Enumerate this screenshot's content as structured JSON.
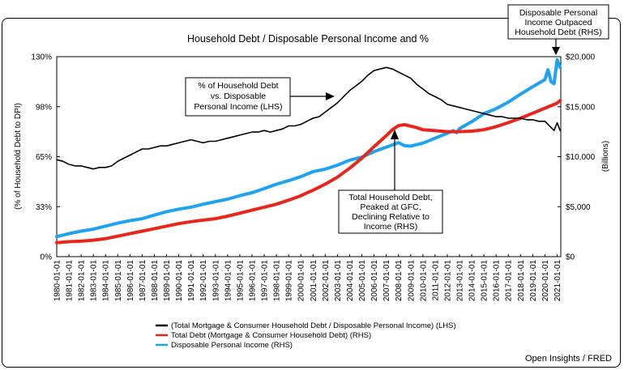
{
  "chart_data": {
    "type": "line",
    "title": "Household Debt / Disposable Personal Income and %",
    "ylabel_left": "(% of Household Debt to DPI)",
    "ylabel_right": "(Billions)",
    "y_left_ticks": [
      "0%",
      "33%",
      "65%",
      "98%",
      "130%"
    ],
    "y_right_ticks": [
      "$0",
      "$5,000",
      "$10,000",
      "$15,000",
      "$20,000"
    ],
    "ylim_left": [
      0,
      130
    ],
    "ylim_right": [
      0,
      20000
    ],
    "x_ticks": [
      "1980-01-01",
      "1981-01-01",
      "1982-01-01",
      "1983-01-01",
      "1984-01-01",
      "1985-01-01",
      "1986-01-01",
      "1987-01-01",
      "1988-01-01",
      "1989-01-01",
      "1990-01-01",
      "1991-01-01",
      "1992-01-01",
      "1993-01-01",
      "1994-01-01",
      "1995-01-01",
      "1996-01-01",
      "1997-01-01",
      "1998-01-01",
      "1999-01-01",
      "2000-01-01",
      "2001-01-01",
      "2002-01-01",
      "2003-01-01",
      "2004-01-01",
      "2005-01-01",
      "2006-01-01",
      "2007-01-01",
      "2008-01-01",
      "2009-01-01",
      "2010-01-01",
      "2011-01-01",
      "2012-01-01",
      "2013-01-01",
      "2014-01-01",
      "2015-01-01",
      "2016-01-01",
      "2017-01-01",
      "2018-01-01",
      "2019-01-01",
      "2020-01-01",
      "2021-01-01"
    ],
    "x_range": [
      1980.0,
      2021.3
    ],
    "legend_position": "bottom",
    "grid": false,
    "series": [
      {
        "name": "(Total Mortgage & Consumer Household Debt / Disposable Personal Income) (LHS)",
        "axis": "left",
        "color": "#000000",
        "x": [
          1980,
          1980.5,
          1981,
          1981.5,
          1982,
          1982.5,
          1983,
          1983.5,
          1984,
          1984.5,
          1985,
          1985.5,
          1986,
          1986.5,
          1987,
          1987.5,
          1988,
          1988.5,
          1989,
          1989.5,
          1990,
          1990.5,
          1991,
          1991.5,
          1992,
          1992.5,
          1993,
          1993.5,
          1994,
          1994.5,
          1995,
          1995.5,
          1996,
          1996.5,
          1997,
          1997.5,
          1998,
          1998.5,
          1999,
          1999.5,
          2000,
          2000.5,
          2001,
          2001.5,
          2002,
          2002.5,
          2003,
          2003.5,
          2004,
          2004.5,
          2005,
          2005.5,
          2006,
          2006.5,
          2007,
          2007.5,
          2008,
          2008.5,
          2009,
          2009.5,
          2010,
          2010.5,
          2011,
          2011.5,
          2012,
          2012.5,
          2013,
          2013.5,
          2014,
          2014.5,
          2015,
          2015.5,
          2016,
          2016.5,
          2017,
          2017.5,
          2018,
          2018.5,
          2019,
          2019.5,
          2020,
          2020.25,
          2020.5,
          2020.75,
          2021,
          2021.25
        ],
        "values": [
          63,
          62,
          60,
          59,
          59,
          58,
          57,
          58,
          58,
          59,
          62,
          64,
          66,
          68,
          70,
          70,
          71,
          72,
          72,
          73,
          74,
          75,
          76,
          75,
          74,
          75,
          75,
          76,
          77,
          78,
          79,
          80,
          81,
          81,
          82,
          81,
          82,
          83,
          85,
          85,
          86,
          88,
          90,
          91,
          94,
          97,
          100,
          104,
          108,
          111,
          114,
          118,
          121,
          122,
          123,
          122,
          120,
          118,
          116,
          112,
          109,
          106,
          104,
          102,
          99,
          98,
          97,
          96,
          95,
          94,
          93,
          92,
          91,
          91,
          90,
          90,
          90,
          89,
          89,
          88,
          88,
          86,
          84,
          82,
          87,
          82
        ]
      },
      {
        "name": "Total Debt (Mortgage & Consumer Household Debt) (RHS)",
        "axis": "right",
        "color": "#e8261c",
        "x": [
          1980,
          1981,
          1982,
          1983,
          1984,
          1985,
          1986,
          1987,
          1988,
          1989,
          1990,
          1991,
          1992,
          1993,
          1994,
          1995,
          1996,
          1997,
          1998,
          1999,
          2000,
          2001,
          2002,
          2003,
          2004,
          2005,
          2006,
          2007,
          2007.5,
          2008,
          2008.5,
          2009,
          2009.5,
          2010,
          2011,
          2012,
          2013,
          2014,
          2015,
          2016,
          2017,
          2018,
          2019,
          2020,
          2021,
          2021.25
        ],
        "values": [
          1400,
          1500,
          1550,
          1650,
          1800,
          2050,
          2300,
          2550,
          2800,
          3050,
          3300,
          3500,
          3650,
          3800,
          4050,
          4350,
          4650,
          4950,
          5250,
          5650,
          6100,
          6650,
          7250,
          7950,
          8850,
          9850,
          11000,
          12100,
          12700,
          13100,
          13200,
          13050,
          12900,
          12700,
          12600,
          12500,
          12500,
          12550,
          12700,
          13000,
          13400,
          13850,
          14350,
          14850,
          15350,
          15600
        ]
      },
      {
        "name": "Disposable Personal Income (RHS)",
        "axis": "right",
        "color": "#1ea3f0",
        "x": [
          1980,
          1981,
          1982,
          1983,
          1984,
          1985,
          1986,
          1987,
          1988,
          1989,
          1990,
          1991,
          1992,
          1993,
          1994,
          1995,
          1996,
          1997,
          1998,
          1999,
          2000,
          2001,
          2002,
          2003,
          2004,
          2005,
          2006,
          2007,
          2008,
          2008.5,
          2009,
          2009.5,
          2010,
          2011,
          2012,
          2012.5,
          2012.75,
          2013,
          2014,
          2015,
          2016,
          2017,
          2018,
          2019,
          2020,
          2020.25,
          2020.5,
          2020.75,
          2021,
          2021.25
        ],
        "values": [
          2000,
          2300,
          2550,
          2750,
          3050,
          3350,
          3600,
          3800,
          4150,
          4500,
          4750,
          4950,
          5250,
          5500,
          5750,
          6100,
          6400,
          6800,
          7250,
          7600,
          8000,
          8500,
          8750,
          9150,
          9650,
          9950,
          10500,
          10950,
          11400,
          11100,
          11050,
          11200,
          11350,
          11850,
          12350,
          12600,
          12400,
          12800,
          13500,
          14300,
          14800,
          15450,
          16250,
          17000,
          17700,
          18700,
          17500,
          17300,
          19700,
          18900
        ]
      }
    ],
    "annotations": [
      {
        "lines": [
          "% of Household Debt",
          "vs. Disposable",
          "Personal Income (LHS)"
        ]
      },
      {
        "lines": [
          "Total Household Debt,",
          "Peaked at GFC,",
          "Declining Relative to",
          "Income (RHS)"
        ]
      },
      {
        "lines": [
          "Disposable Personal",
          "Income Outpaced",
          "Household Debt (RHS)"
        ]
      }
    ],
    "source": "Open Insights / FRED"
  }
}
